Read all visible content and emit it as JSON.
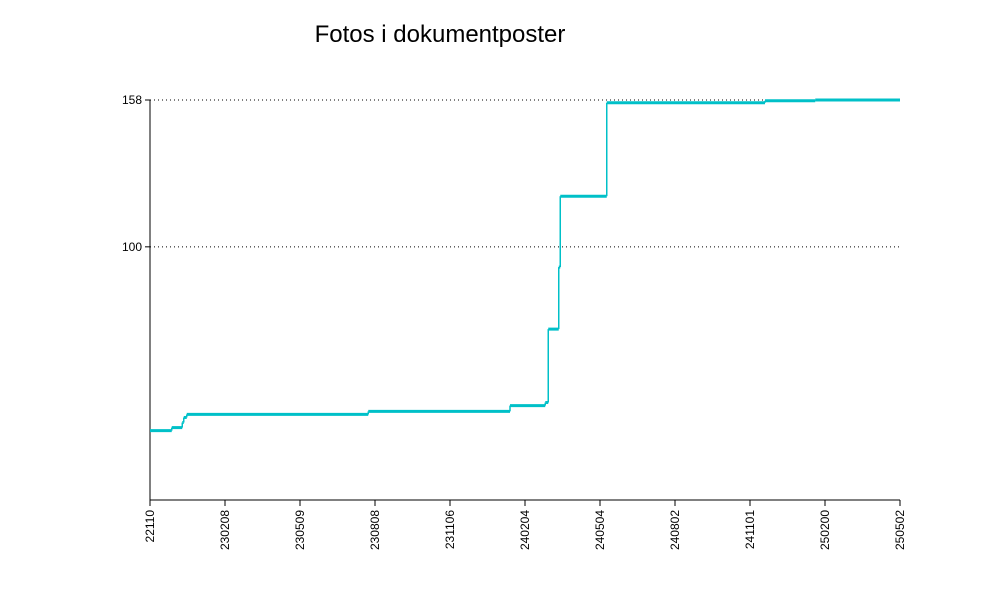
{
  "chart_data": {
    "type": "step-line",
    "title": "Fotos i dokumentposter",
    "x": [
      0,
      0.29,
      0.43,
      0.45,
      0.49,
      2.91,
      4.8,
      5.27,
      5.31,
      5.45,
      5.47,
      6.09,
      8.2,
      8.87,
      10
    ],
    "series": [
      {
        "color": "#00c0c8",
        "values": [
          27.4,
          28.6,
          30.6,
          32.6,
          33.8,
          35,
          37.3,
          38.5,
          67.5,
          92,
          120,
          156.9,
          157.7,
          158,
          158
        ]
      }
    ],
    "xlim": [
      0,
      10
    ],
    "xticks": [
      {
        "value": 0,
        "label": "22110"
      },
      {
        "value": 1,
        "label": "230208"
      },
      {
        "value": 2,
        "label": "230509"
      },
      {
        "value": 3,
        "label": "230808"
      },
      {
        "value": 4,
        "label": "231106"
      },
      {
        "value": 5,
        "label": "240204"
      },
      {
        "value": 6,
        "label": "240504"
      },
      {
        "value": 7,
        "label": "240802"
      },
      {
        "value": 8,
        "label": "241101"
      },
      {
        "value": 9,
        "label": "250200"
      },
      {
        "value": 10,
        "label": "250502"
      }
    ],
    "ylim": [
      0,
      158
    ],
    "yticks": [
      100,
      158
    ],
    "grid": true
  }
}
